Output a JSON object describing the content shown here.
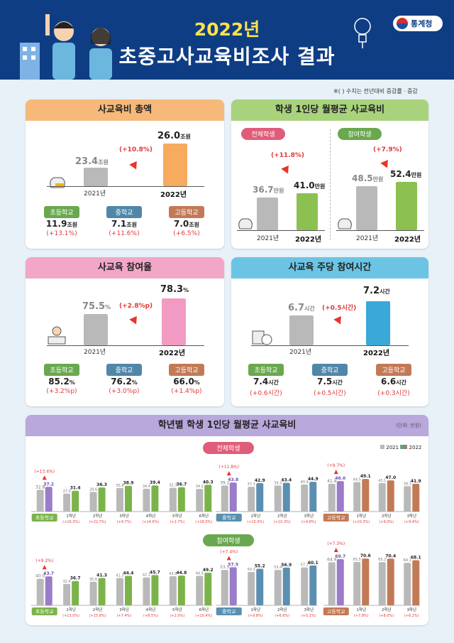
{
  "header": {
    "title_line1": "2022년",
    "title_line2": "초중고사교육비조사 결과",
    "org": "통계청"
  },
  "note": "※(  ) 수치는 전년대비 증감률ㆍ증감",
  "panel1": {
    "title": "사교육비 총액",
    "y2021_value": "23.4",
    "y2021_unit": "조원",
    "y2022_value": "26.0",
    "y2022_unit": "조원",
    "change": "(+10.8%)",
    "year1": "2021년",
    "year2": "2022년",
    "schools": [
      {
        "name": "초등학교",
        "value": "11.9",
        "unit": "조원",
        "change": "(+13.1%)"
      },
      {
        "name": "중학교",
        "value": "7.1",
        "unit": "조원",
        "change": "(+11.6%)"
      },
      {
        "name": "고등학교",
        "value": "7.0",
        "unit": "조원",
        "change": "(+6.5%)"
      }
    ]
  },
  "panel2": {
    "title": "학생 1인당 월평균 사교육비",
    "left": {
      "label": "전체학생",
      "change": "(+11.8%)",
      "v2021": "36.7",
      "v2022": "41.0",
      "unit": "만원",
      "year1": "2021년",
      "year2": "2022년"
    },
    "right": {
      "label": "참여학생",
      "change": "(+7.9%)",
      "v2021": "48.5",
      "v2022": "52.4",
      "unit": "만원",
      "year1": "2021년",
      "year2": "2022년"
    }
  },
  "panel3": {
    "title": "사교육 참여율",
    "v2021": "75.5",
    "v2022": "78.3",
    "unit": "%",
    "change": "(+2.8%p)",
    "year1": "2021년",
    "year2": "2022년",
    "schools": [
      {
        "name": "초등학교",
        "value": "85.2",
        "unit": "%",
        "change": "(+3.2%p)"
      },
      {
        "name": "중학교",
        "value": "76.2",
        "unit": "%",
        "change": "(+3.0%p)"
      },
      {
        "name": "고등학교",
        "value": "66.0",
        "unit": "%",
        "change": "(+1.4%p)"
      }
    ]
  },
  "panel4": {
    "title": "사교육 주당 참여시간",
    "v2021": "6.7",
    "v2022": "7.2",
    "unit": "시간",
    "change": "(+0.5시간)",
    "year1": "2021년",
    "year2": "2022년",
    "schools": [
      {
        "name": "초등학교",
        "value": "7.4",
        "unit": "시간",
        "change": "(+0.6시간)"
      },
      {
        "name": "중학교",
        "value": "7.5",
        "unit": "시간",
        "change": "(+0.5시간)"
      },
      {
        "name": "고등학교",
        "value": "6.6",
        "unit": "시간",
        "change": "(+0.3시간)"
      }
    ]
  },
  "panel5": {
    "title": "학년별 학생 1인당 월평균 사교육비",
    "unit_note": "(단위: 만원)",
    "legend": [
      "2021",
      "2022"
    ],
    "row_labels": [
      "전체학생",
      "참여학생"
    ],
    "colors": {
      "elem": "#7bb34a",
      "mid": "#5a8fb1",
      "high": "#c27a56",
      "overall": "#9a7cc9",
      "prev": "#b9b9b9"
    }
  },
  "chart_data": [
    {
      "type": "bar",
      "title": "학년별 학생 1인당 월평균 사교육비 - 전체학생",
      "groups": [
        {
          "name": "초등학교",
          "summary": {
            "2021": 32.8,
            "2022": 37.2,
            "change": "(+13.4%)"
          },
          "categories": [
            "1학년",
            "2학년",
            "3학년",
            "4학년",
            "5학년",
            "6학년"
          ],
          "v2021": [
            27.0,
            29.6,
            35.6,
            34.4,
            35.7,
            34.2
          ],
          "v2022": [
            31.4,
            36.3,
            38.9,
            39.4,
            36.7,
            40.3
          ],
          "changes": [
            "(+16.3%)",
            "(+22.7%)",
            "(+9.7%)",
            "(+14.6%)",
            "(+2.7%)",
            "(+18.0%)"
          ]
        },
        {
          "name": "중학교",
          "summary": {
            "2021": 39.2,
            "2022": 43.8,
            "change": "(+11.8%)"
          },
          "categories": [
            "1학년",
            "2학년",
            "3학년"
          ],
          "v2021": [
            37.3,
            39.3,
            40.9
          ],
          "v2022": [
            42.9,
            43.4,
            44.9
          ],
          "changes": [
            "(+15.0%)",
            "(+10.3%)",
            "(+9.8%)"
          ]
        },
        {
          "name": "고등학교",
          "summary": {
            "2021": 41.9,
            "2022": 46.0,
            "change": "(+9.7%)"
          },
          "categories": [
            "1학년",
            "2학년",
            "3학년"
          ],
          "v2021": [
            44.5,
            43.1,
            38.3
          ],
          "v2022": [
            49.1,
            47.0,
            41.9
          ],
          "changes": [
            "(+10.3%)",
            "(+9.0%)",
            "(+9.4%)"
          ]
        }
      ]
    },
    {
      "type": "bar",
      "title": "학년별 학생 1인당 월평균 사교육비 - 참여학생",
      "groups": [
        {
          "name": "초등학교",
          "summary": {
            "2021": 40.0,
            "2022": 43.7,
            "change": "(+9.2%)"
          },
          "categories": [
            "1학년",
            "2학년",
            "3학년",
            "4학년",
            "5학년",
            "6학년"
          ],
          "v2021": [
            32.4,
            35.6,
            41.3,
            42.1,
            43.9,
            44.5
          ],
          "v2022": [
            36.7,
            41.3,
            44.4,
            45.7,
            44.8,
            49.2
          ],
          "changes": [
            "(+13.0%)",
            "(+15.9%)",
            "(+7.4%)",
            "(+8.5%)",
            "(+2.0%)",
            "(+10.4%)"
          ]
        },
        {
          "name": "중학교",
          "summary": {
            "2021": 53.5,
            "2022": 57.5,
            "change": "(+7.4%)"
          },
          "categories": [
            "1학년",
            "2학년",
            "3학년"
          ],
          "v2021": [
            50.3,
            53.4,
            57.2
          ],
          "v2022": [
            55.2,
            56.9,
            60.1
          ],
          "changes": [
            "(+9.8%)",
            "(+6.6%)",
            "(+5.1%)"
          ]
        },
        {
          "name": "고등학교",
          "summary": {
            "2021": 64.9,
            "2022": 69.7,
            "change": "(+7.3%)"
          },
          "categories": [
            "1학년",
            "2학년",
            "3학년"
          ],
          "v2021": [
            65.5,
            65.2,
            64.1
          ],
          "v2022": [
            70.6,
            70.4,
            68.1
          ],
          "changes": [
            "(+7.8%)",
            "(+8.0%)",
            "(+6.2%)"
          ]
        }
      ]
    }
  ]
}
